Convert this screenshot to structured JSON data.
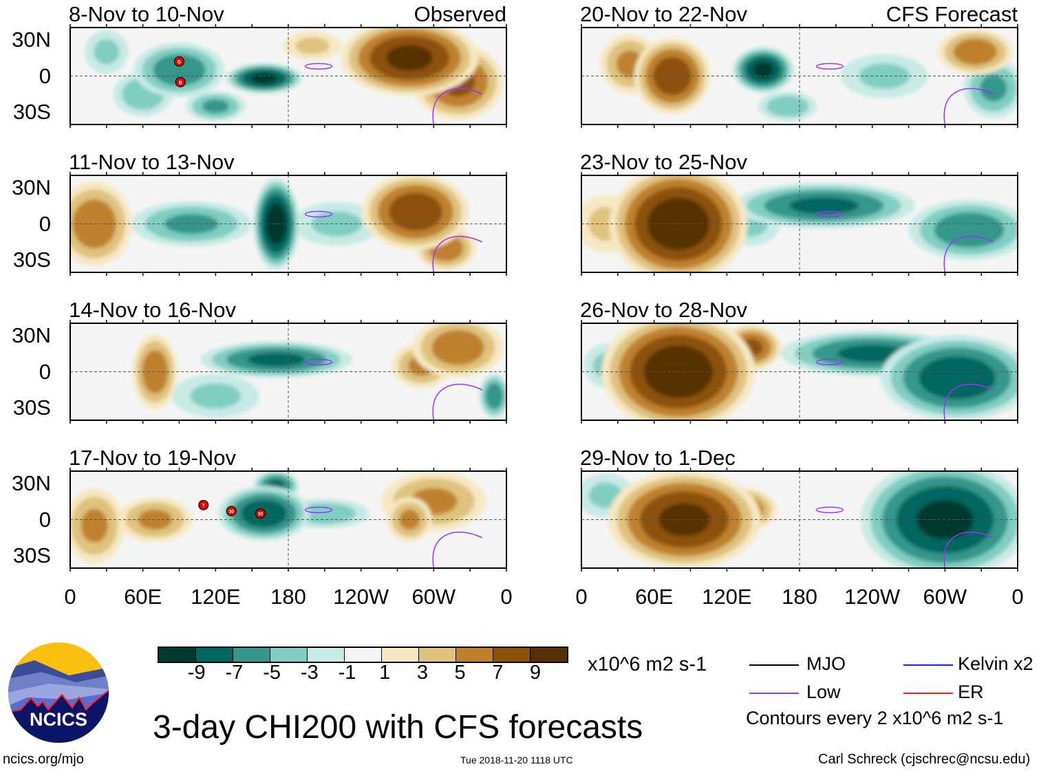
{
  "figure_title": "3-day CHI200 with CFS forecasts",
  "units": "x10^6 m2 s-1",
  "footer": {
    "url": "ncics.org/mjo",
    "timestamp": "Tue 2018-11-20 1118 UTC",
    "author": "Carl Schreck (cjschrec@ncsu.edu)"
  },
  "logo": {
    "text": "NCICS"
  },
  "lat_labels": [
    "30N",
    "0",
    "30S"
  ],
  "lon_labels": [
    "0",
    "60E",
    "120E",
    "180",
    "120W",
    "60W",
    "0"
  ],
  "colorbar": {
    "labels": [
      "-9",
      "-7",
      "-5",
      "-3",
      "-1",
      "1",
      "3",
      "5",
      "7",
      "9"
    ],
    "colors": [
      "#01392f",
      "#03665e",
      "#36968c",
      "#80cdc1",
      "#c7eae5",
      "#f5f5f5",
      "#f6e8c3",
      "#dfc27d",
      "#bf812d",
      "#8c510a",
      "#543005"
    ]
  },
  "legend": {
    "items": [
      {
        "label": "MJO",
        "color": "#000000"
      },
      {
        "label": "Kelvin x2",
        "color": "#1a1aff"
      },
      {
        "label": "Low",
        "color": "#9933ff"
      },
      {
        "label": "ER",
        "color": "#ff1a1a"
      }
    ],
    "note": "Contours every 2 x10^6 m2 s-1"
  },
  "panels": [
    {
      "title": "8-Nov to 10-Nov",
      "tag": "Observed",
      "storms": [
        {
          "label": "G",
          "lon": 90,
          "lat": 12
        },
        {
          "label": "B",
          "lon": 91,
          "lat": -5
        }
      ],
      "anomalies": [
        [
          90,
          5,
          -6,
          30,
          18
        ],
        [
          160,
          -2,
          -9,
          25,
          10
        ],
        [
          120,
          -25,
          -5,
          20,
          10
        ],
        [
          60,
          -15,
          -4,
          20,
          15
        ],
        [
          280,
          15,
          9,
          45,
          25
        ],
        [
          320,
          -5,
          7,
          30,
          25
        ],
        [
          200,
          25,
          3,
          20,
          10
        ],
        [
          30,
          20,
          -3,
          15,
          15
        ]
      ]
    },
    {
      "title": "11-Nov to 13-Nov",
      "tag": "",
      "storms": [],
      "anomalies": [
        [
          170,
          0,
          -10,
          15,
          30
        ],
        [
          100,
          0,
          -5,
          40,
          15
        ],
        [
          20,
          0,
          6,
          25,
          28
        ],
        [
          285,
          10,
          8,
          35,
          25
        ],
        [
          310,
          -20,
          6,
          20,
          15
        ],
        [
          220,
          0,
          -3,
          30,
          15
        ]
      ]
    },
    {
      "title": "14-Nov to 16-Nov",
      "tag": "",
      "storms": [],
      "anomalies": [
        [
          170,
          10,
          -7,
          50,
          12
        ],
        [
          70,
          0,
          6,
          15,
          25
        ],
        [
          290,
          5,
          5,
          20,
          15
        ],
        [
          320,
          20,
          6,
          30,
          20
        ],
        [
          350,
          -20,
          -6,
          10,
          15
        ],
        [
          120,
          -20,
          -3,
          30,
          15
        ]
      ]
    },
    {
      "title": "17-Nov to 19-Nov",
      "tag": "",
      "storms": [
        {
          "label": "T",
          "lon": 110,
          "lat": 12
        },
        {
          "label": "30",
          "lon": 133,
          "lat": 7
        },
        {
          "label": "30",
          "lon": 157,
          "lat": 5
        }
      ],
      "anomalies": [
        [
          160,
          5,
          -8,
          30,
          18
        ],
        [
          170,
          28,
          -7,
          15,
          10
        ],
        [
          20,
          -5,
          5,
          20,
          25
        ],
        [
          70,
          0,
          5,
          25,
          15
        ],
        [
          300,
          15,
          5,
          35,
          20
        ],
        [
          280,
          0,
          5,
          15,
          15
        ],
        [
          210,
          5,
          -4,
          30,
          10
        ]
      ]
    },
    {
      "title": "20-Nov to 22-Nov",
      "tag": "CFS Forecast",
      "storms": [],
      "anomalies": [
        [
          75,
          0,
          8,
          25,
          25
        ],
        [
          150,
          5,
          -9,
          20,
          15
        ],
        [
          40,
          10,
          5,
          20,
          20
        ],
        [
          325,
          20,
          6,
          25,
          15
        ],
        [
          340,
          -10,
          -5,
          20,
          20
        ],
        [
          170,
          -25,
          -4,
          20,
          10
        ],
        [
          250,
          0,
          -3,
          30,
          15
        ]
      ]
    },
    {
      "title": "23-Nov to 25-Nov",
      "tag": "",
      "storms": [],
      "anomalies": [
        [
          80,
          0,
          10,
          45,
          38
        ],
        [
          200,
          15,
          -7,
          60,
          15
        ],
        [
          320,
          -5,
          -6,
          40,
          20
        ],
        [
          140,
          0,
          -3,
          20,
          15
        ],
        [
          20,
          0,
          3,
          20,
          20
        ]
      ]
    },
    {
      "title": "26-Nov to 28-Nov",
      "tag": "",
      "storms": [],
      "anomalies": [
        [
          80,
          0,
          10,
          50,
          38
        ],
        [
          140,
          20,
          7,
          20,
          15
        ],
        [
          240,
          15,
          -7,
          60,
          15
        ],
        [
          310,
          -5,
          -8,
          50,
          28
        ],
        [
          20,
          5,
          -3,
          15,
          15
        ]
      ]
    },
    {
      "title": "29-Nov to 1-Dec",
      "tag": "",
      "storms": [],
      "anomalies": [
        [
          85,
          0,
          9,
          50,
          32
        ],
        [
          130,
          8,
          7,
          25,
          15
        ],
        [
          300,
          0,
          -9,
          55,
          38
        ],
        [
          20,
          20,
          -3,
          20,
          15
        ]
      ]
    }
  ]
}
